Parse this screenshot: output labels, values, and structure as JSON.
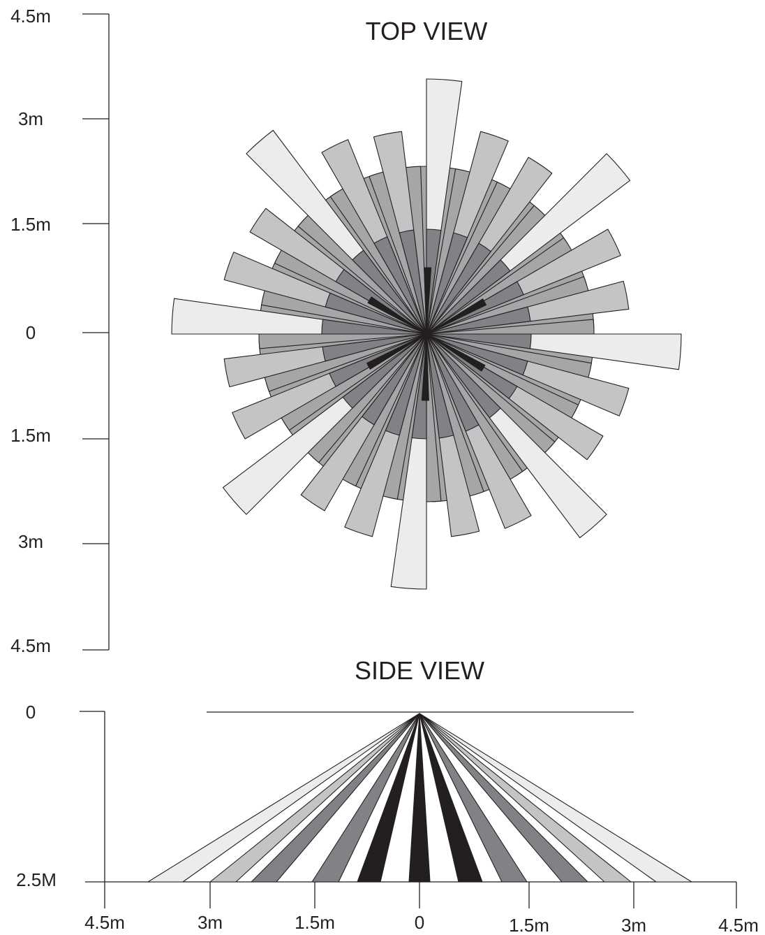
{
  "top_view": {
    "title": "TOP VIEW",
    "axis_labels": [
      "4.5m",
      "3m",
      "1.5m",
      "0",
      "1.5m",
      "3m",
      "4.5m"
    ]
  },
  "side_view": {
    "title": "SIDE VIEW",
    "y_labels": [
      "0",
      "2.5M"
    ],
    "x_labels": [
      "4.5m",
      "3m",
      "1.5m",
      "0",
      "1.5m",
      "3m",
      "4.5m"
    ]
  },
  "colors": {
    "line": "#231f20",
    "zone_outer": "#ececed",
    "zone_mid": "#c3c4c6",
    "zone_inner": "#a5a6a8",
    "zone_core": "#808285",
    "zone_center": "#231f20"
  }
}
